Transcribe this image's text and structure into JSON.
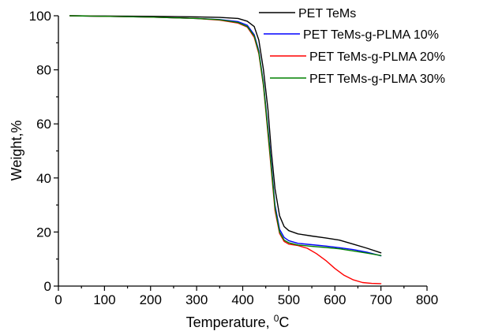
{
  "chart_data": {
    "type": "line",
    "title": "",
    "xlabel": "Temperature, ",
    "xlabel_sup": "0",
    "xlabel_tail": "C",
    "ylabel": "Weight,%",
    "xlim": [
      0,
      800
    ],
    "ylim": [
      0,
      100
    ],
    "xticks": [
      0,
      100,
      200,
      300,
      400,
      500,
      600,
      700,
      800
    ],
    "yticks": [
      0,
      20,
      40,
      60,
      80,
      100
    ],
    "grid": false,
    "legend_position": "top-right",
    "series": [
      {
        "name": "PET TeMs",
        "color": "#000000",
        "points": [
          [
            25,
            100
          ],
          [
            100,
            99.9
          ],
          [
            200,
            99.8
          ],
          [
            300,
            99.6
          ],
          [
            350,
            99.4
          ],
          [
            390,
            99.0
          ],
          [
            410,
            98.0
          ],
          [
            425,
            96.0
          ],
          [
            435,
            91.0
          ],
          [
            445,
            80.0
          ],
          [
            455,
            65.0
          ],
          [
            462,
            50.0
          ],
          [
            470,
            36.0
          ],
          [
            480,
            26.0
          ],
          [
            490,
            22.0
          ],
          [
            500,
            20.5
          ],
          [
            520,
            19.3
          ],
          [
            550,
            18.5
          ],
          [
            580,
            17.8
          ],
          [
            610,
            17.0
          ],
          [
            640,
            15.5
          ],
          [
            670,
            14.0
          ],
          [
            700,
            12.3
          ]
        ]
      },
      {
        "name": "PET TeMs-g-PLMA 10%",
        "color": "#0000ff",
        "points": [
          [
            25,
            100
          ],
          [
            100,
            99.8
          ],
          [
            200,
            99.5
          ],
          [
            300,
            99.0
          ],
          [
            350,
            98.6
          ],
          [
            390,
            97.8
          ],
          [
            410,
            96.5
          ],
          [
            425,
            93.0
          ],
          [
            435,
            87.0
          ],
          [
            445,
            75.0
          ],
          [
            455,
            58.0
          ],
          [
            462,
            45.0
          ],
          [
            470,
            30.0
          ],
          [
            480,
            21.0
          ],
          [
            490,
            18.0
          ],
          [
            500,
            16.8
          ],
          [
            520,
            15.8
          ],
          [
            550,
            15.3
          ],
          [
            580,
            14.8
          ],
          [
            610,
            14.2
          ],
          [
            640,
            13.5
          ],
          [
            670,
            12.5
          ],
          [
            700,
            11.2
          ]
        ]
      },
      {
        "name": "PET TeMs-g-PLMA 20%",
        "color": "#ff0000",
        "points": [
          [
            25,
            100
          ],
          [
            100,
            99.8
          ],
          [
            200,
            99.5
          ],
          [
            300,
            99.0
          ],
          [
            350,
            98.4
          ],
          [
            390,
            97.3
          ],
          [
            410,
            95.8
          ],
          [
            425,
            92.0
          ],
          [
            435,
            86.0
          ],
          [
            445,
            74.0
          ],
          [
            455,
            56.0
          ],
          [
            462,
            43.0
          ],
          [
            470,
            28.0
          ],
          [
            480,
            19.5
          ],
          [
            490,
            16.5
          ],
          [
            500,
            15.5
          ],
          [
            520,
            15.0
          ],
          [
            540,
            14.0
          ],
          [
            560,
            12.0
          ],
          [
            580,
            9.5
          ],
          [
            600,
            6.5
          ],
          [
            620,
            4.0
          ],
          [
            640,
            2.3
          ],
          [
            660,
            1.3
          ],
          [
            680,
            1.0
          ],
          [
            700,
            0.9
          ]
        ]
      },
      {
        "name": "PET TeMs-g-PLMA 30%",
        "color": "#008000",
        "points": [
          [
            25,
            100
          ],
          [
            100,
            99.8
          ],
          [
            200,
            99.5
          ],
          [
            300,
            99.0
          ],
          [
            350,
            98.5
          ],
          [
            390,
            97.5
          ],
          [
            410,
            96.0
          ],
          [
            425,
            92.5
          ],
          [
            435,
            86.5
          ],
          [
            445,
            74.5
          ],
          [
            455,
            57.0
          ],
          [
            462,
            44.0
          ],
          [
            470,
            29.0
          ],
          [
            480,
            20.0
          ],
          [
            490,
            17.0
          ],
          [
            500,
            16.0
          ],
          [
            520,
            15.2
          ],
          [
            550,
            14.7
          ],
          [
            580,
            14.3
          ],
          [
            610,
            13.8
          ],
          [
            640,
            13.0
          ],
          [
            670,
            12.2
          ],
          [
            700,
            11.3
          ]
        ]
      }
    ]
  }
}
